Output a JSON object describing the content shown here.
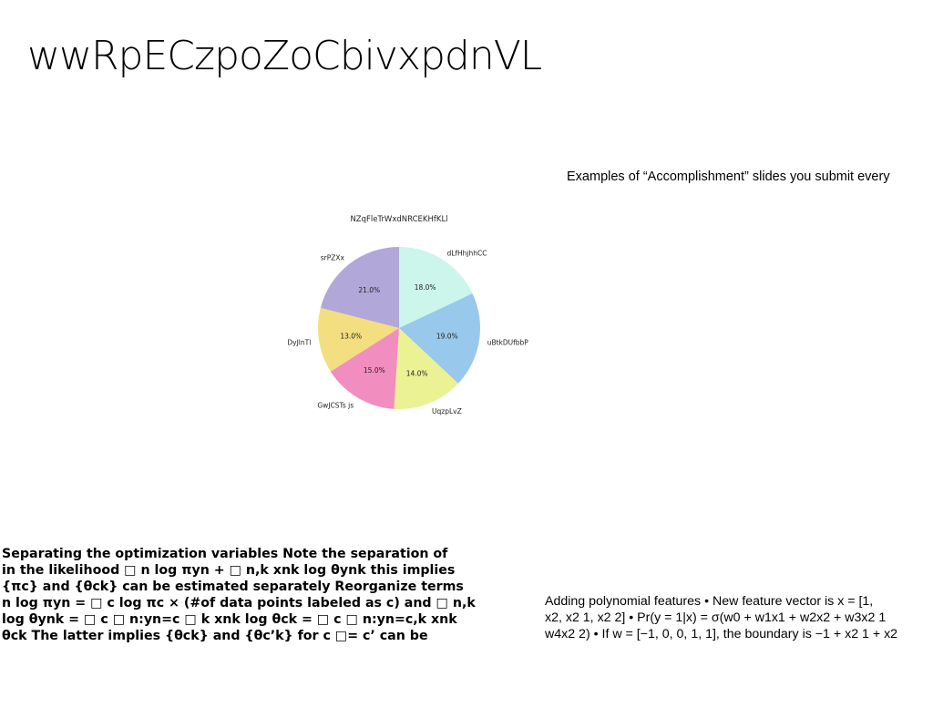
{
  "slide": {
    "title": "wwRpECzpoZoCbivxpdnVL",
    "caption_right_top": "Examples of “Accomplishment” slides you submit every",
    "left_text_lines": [
      "Separating the optimization variables Note the separation of",
      "in the likelihood □ n log πyn + □ n,k xnk log θynk this implies",
      "{πc} and {θck} can be estimated separately Reorganize terms",
      "n log πyn = □ c log πc × (#of data points labeled as c) and □ n,k",
      "log θynk = □ c □ n:yn=c □ k xnk log θck = □ c □ n:yn=c,k xnk",
      "θck The latter implies {θck} and {θc’k} for c □= c’ can be"
    ],
    "right_text_lines": [
      "Adding polynomial features • New feature vector is x = [1,",
      "x2, x2 1, x2 2] • Pr(y = 1|x) = σ(w0 + w1x1 + w2x2 + w3x2 1",
      "w4x2 2) • If w = [−1, 0, 0, 1, 1], the boundary is −1 + x2 1 + x2"
    ]
  },
  "chart_data": {
    "type": "pie",
    "title": "NZqFleTrWxdNRCEKHfKLl",
    "start_angle_deg": 90,
    "direction": "clockwise",
    "slices": [
      {
        "label": "dLfHhjhhCC",
        "value": 18.0,
        "pct_label": "18.0%",
        "color": "#ccf5ec"
      },
      {
        "label": "uBtkDUfbbP",
        "value": 19.0,
        "pct_label": "19.0%",
        "color": "#98c8ec"
      },
      {
        "label": "UqzpLvZ",
        "value": 14.0,
        "pct_label": "14.0%",
        "color": "#eaf294"
      },
      {
        "label": "GwJCSTs js",
        "value": 15.0,
        "pct_label": "15.0%",
        "color": "#f28dbf"
      },
      {
        "label": "DyJlnTl",
        "value": 13.0,
        "pct_label": "13.0%",
        "color": "#f3df80"
      },
      {
        "label": "srPZXx",
        "value": 21.0,
        "pct_label": "21.0%",
        "color": "#b2a7d9"
      }
    ]
  }
}
